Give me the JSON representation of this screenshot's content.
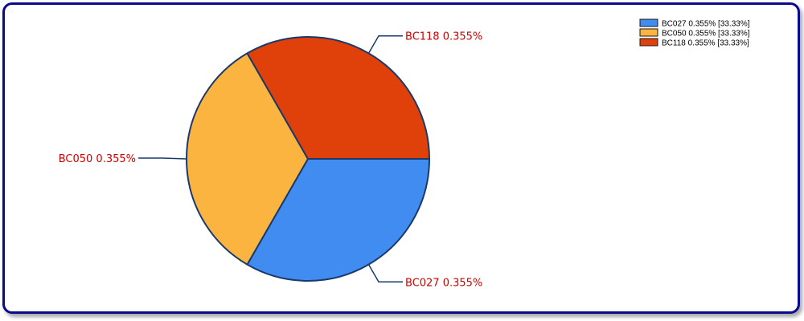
{
  "chart_data": {
    "type": "pie",
    "slices": [
      {
        "name": "BC027",
        "value": 0.355,
        "label": "BC027 0.355%",
        "legend": "BC027 0.355% [33.33%]",
        "color": "#418cf0"
      },
      {
        "name": "BC050",
        "value": 0.355,
        "label": "BC050 0.355%",
        "legend": "BC050 0.355% [33.33%]",
        "color": "#fcb441"
      },
      {
        "name": "BC118",
        "value": 0.355,
        "label": "BC118 0.355%",
        "legend": "BC118 0.355% [33.33%]",
        "color": "#e0400a"
      }
    ],
    "legend_position": "top-right",
    "label_color": "#cc0000",
    "outline_color": "#1a3a6b",
    "frame_color": "#0a0a8c"
  }
}
